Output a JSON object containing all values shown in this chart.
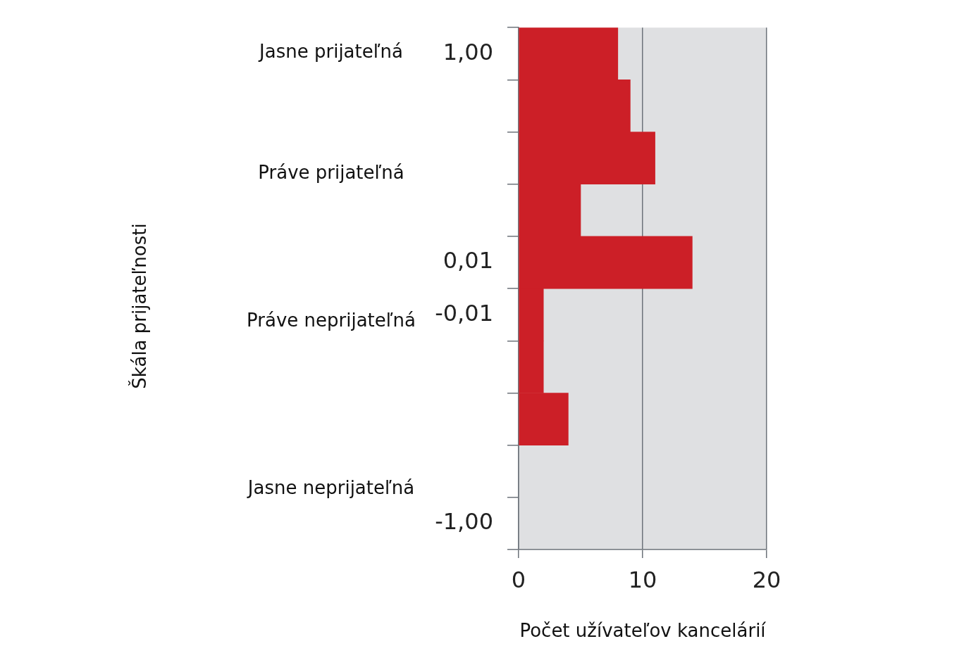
{
  "chart_data": {
    "type": "bar",
    "orientation": "horizontal",
    "categories": [
      "1,00",
      null,
      null,
      null,
      "0,01",
      "-0,01",
      null,
      null,
      null,
      "-1,00"
    ],
    "values": [
      8,
      9,
      11,
      5,
      14,
      2,
      2,
      4,
      null,
      null
    ],
    "color": "#cc1f27",
    "xlim": [
      0,
      20
    ],
    "xticks": [
      0,
      10,
      20
    ],
    "xlabel": "Počet užívateľov kancelárií",
    "annotations": [
      "Škála prijateľnosti",
      "Jasne prijateľná",
      "Práve prijateľná",
      "Práve neprijateľná",
      "Jasne neprijateľná"
    ],
    "grid": "x",
    "legend": false
  }
}
